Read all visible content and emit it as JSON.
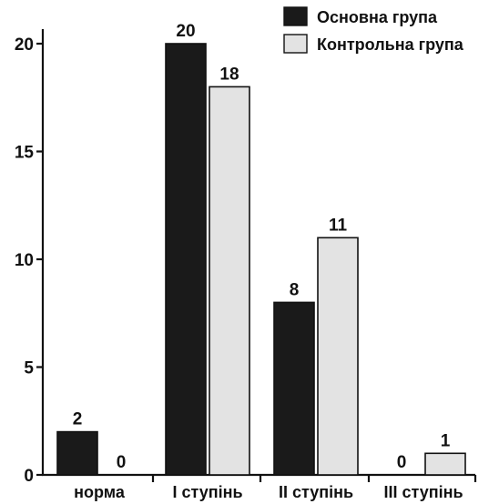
{
  "chart_data": {
    "type": "bar",
    "categories": [
      "норма",
      "I ступінь",
      "II ступінь",
      "III ступінь"
    ],
    "series": [
      {
        "name": "Основна група",
        "values": [
          2,
          20,
          8,
          0
        ],
        "color": "#1a1a1a"
      },
      {
        "name": "Контрольна група",
        "values": [
          0,
          18,
          11,
          1
        ],
        "color": "#e3e3e3"
      }
    ],
    "yticks": [
      0,
      5,
      10,
      15,
      20
    ],
    "ylim": [
      0,
      21
    ],
    "data_labels": true,
    "legend_position": "top-right",
    "grid": false,
    "title": "",
    "xlabel": "",
    "ylabel": ""
  }
}
